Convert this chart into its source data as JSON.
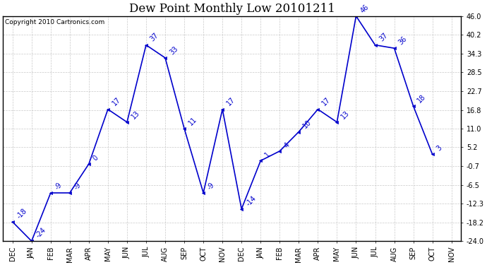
{
  "title": "Dew Point Monthly Low 20101211",
  "copyright": "Copyright 2010 Cartronics.com",
  "x_labels": [
    "DEC",
    "JAN",
    "FEB",
    "MAR",
    "APR",
    "MAY",
    "JUN",
    "JUL",
    "AUG",
    "SEP",
    "OCT",
    "NOV",
    "DEC",
    "JAN",
    "FEB",
    "MAR",
    "APR",
    "MAY",
    "JUN",
    "JUL",
    "AUG",
    "SEP",
    "OCT",
    "NOV"
  ],
  "y_values": [
    -18,
    -24,
    -9,
    -9,
    0,
    17,
    13,
    37,
    33,
    11,
    -9,
    17,
    -14,
    1,
    4,
    10,
    17,
    13,
    46,
    37,
    36,
    18,
    3
  ],
  "annot_values": [
    "-18",
    "-24",
    "-9",
    "-9",
    "0",
    "17",
    "13",
    "37",
    "33",
    "11",
    "-9",
    "17",
    "-14",
    "1",
    "4",
    "10",
    "17",
    "13",
    "46",
    "37",
    "36",
    "18",
    "3"
  ],
  "y_tick_vals": [
    -24.0,
    -18.2,
    -12.3,
    -6.5,
    -0.7,
    5.2,
    11.0,
    16.8,
    22.7,
    28.5,
    34.3,
    40.2,
    46.0
  ],
  "y_tick_labels": [
    "-24.0",
    "-18.2",
    "-12.3",
    "-6.5",
    "-0.7",
    "5.2",
    "11.0",
    "16.8",
    "22.7",
    "28.5",
    "34.3",
    "40.2",
    "46.0"
  ],
  "line_color": "#0000cc",
  "background_color": "#ffffff",
  "grid_color": "#bbbbbb",
  "title_fontsize": 12,
  "tick_fontsize": 7,
  "annot_fontsize": 7,
  "copyright_fontsize": 6.5,
  "ylim_min": -24.0,
  "ylim_max": 46.0
}
